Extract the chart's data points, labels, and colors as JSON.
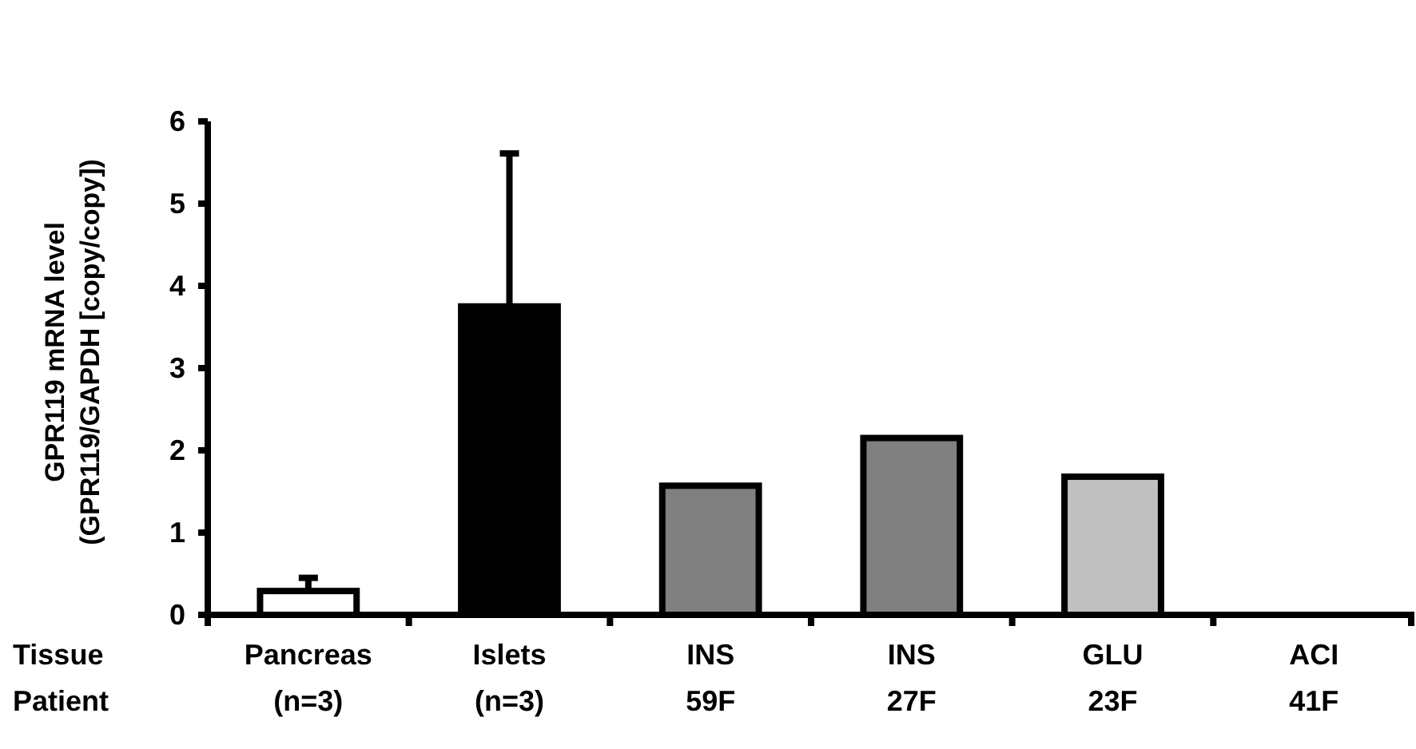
{
  "chart_data": {
    "type": "bar",
    "ylabel": "GPR119 mRNA level\n(GPR119/GAPDH [copy/copy])",
    "categories": [
      "Pancreas\n(n=3)",
      "Islets\n(n=3)",
      "INS\n59F",
      "INS\n27F",
      "GLU\n23F",
      "ACI\n41F"
    ],
    "values": [
      0.29,
      3.75,
      1.57,
      2.15,
      1.68,
      0
    ],
    "errors": [
      0.16,
      1.86,
      null,
      null,
      null,
      null
    ],
    "colors": [
      "#ffffff",
      "#000000",
      "#808080",
      "#808080",
      "#c0c0c0",
      "#ffffff"
    ],
    "ylim": [
      0,
      6
    ],
    "yticks": [
      0,
      1,
      2,
      3,
      4,
      5,
      6
    ],
    "grid": false,
    "annotations": [
      "Tissue",
      "Patient"
    ]
  }
}
